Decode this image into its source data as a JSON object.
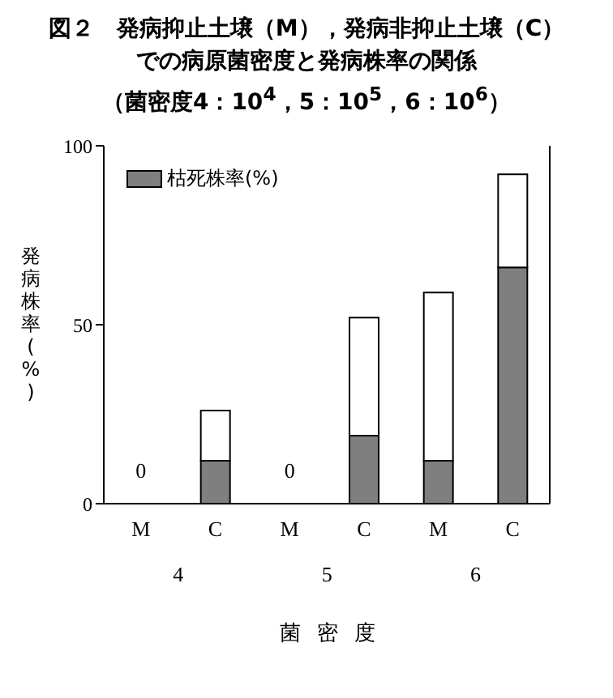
{
  "chart_data": {
    "type": "bar",
    "title": "図２　発病抑止土壌（M），発病非抑止土壌（C）での病原菌密度と発病株率の関係",
    "subtitle": "（菌密度4：10$^{4}$，5：10$^{5}$，6：10$^{6}$）",
    "ylabel": "発病株率(%)",
    "xlabel": "菌密度",
    "annotations": [
      "4",
      "5",
      "6"
    ],
    "categories": [
      "M",
      "C",
      "M",
      "C",
      "M",
      "C"
    ],
    "stacked": true,
    "series": [
      {
        "name": "枯死株率(%)",
        "color": "#7f7f7f",
        "values": [
          0,
          12,
          0,
          19,
          12,
          66
        ],
        "value_labels": [
          "0",
          null,
          "0",
          null,
          null,
          null
        ]
      },
      {
        "color": "#ffffff",
        "values": [
          0,
          14,
          0,
          33,
          47,
          26
        ]
      }
    ],
    "ylim": [
      0,
      100
    ],
    "yticks": [
      0,
      50,
      100
    ],
    "grid": false,
    "legend": "top left"
  }
}
